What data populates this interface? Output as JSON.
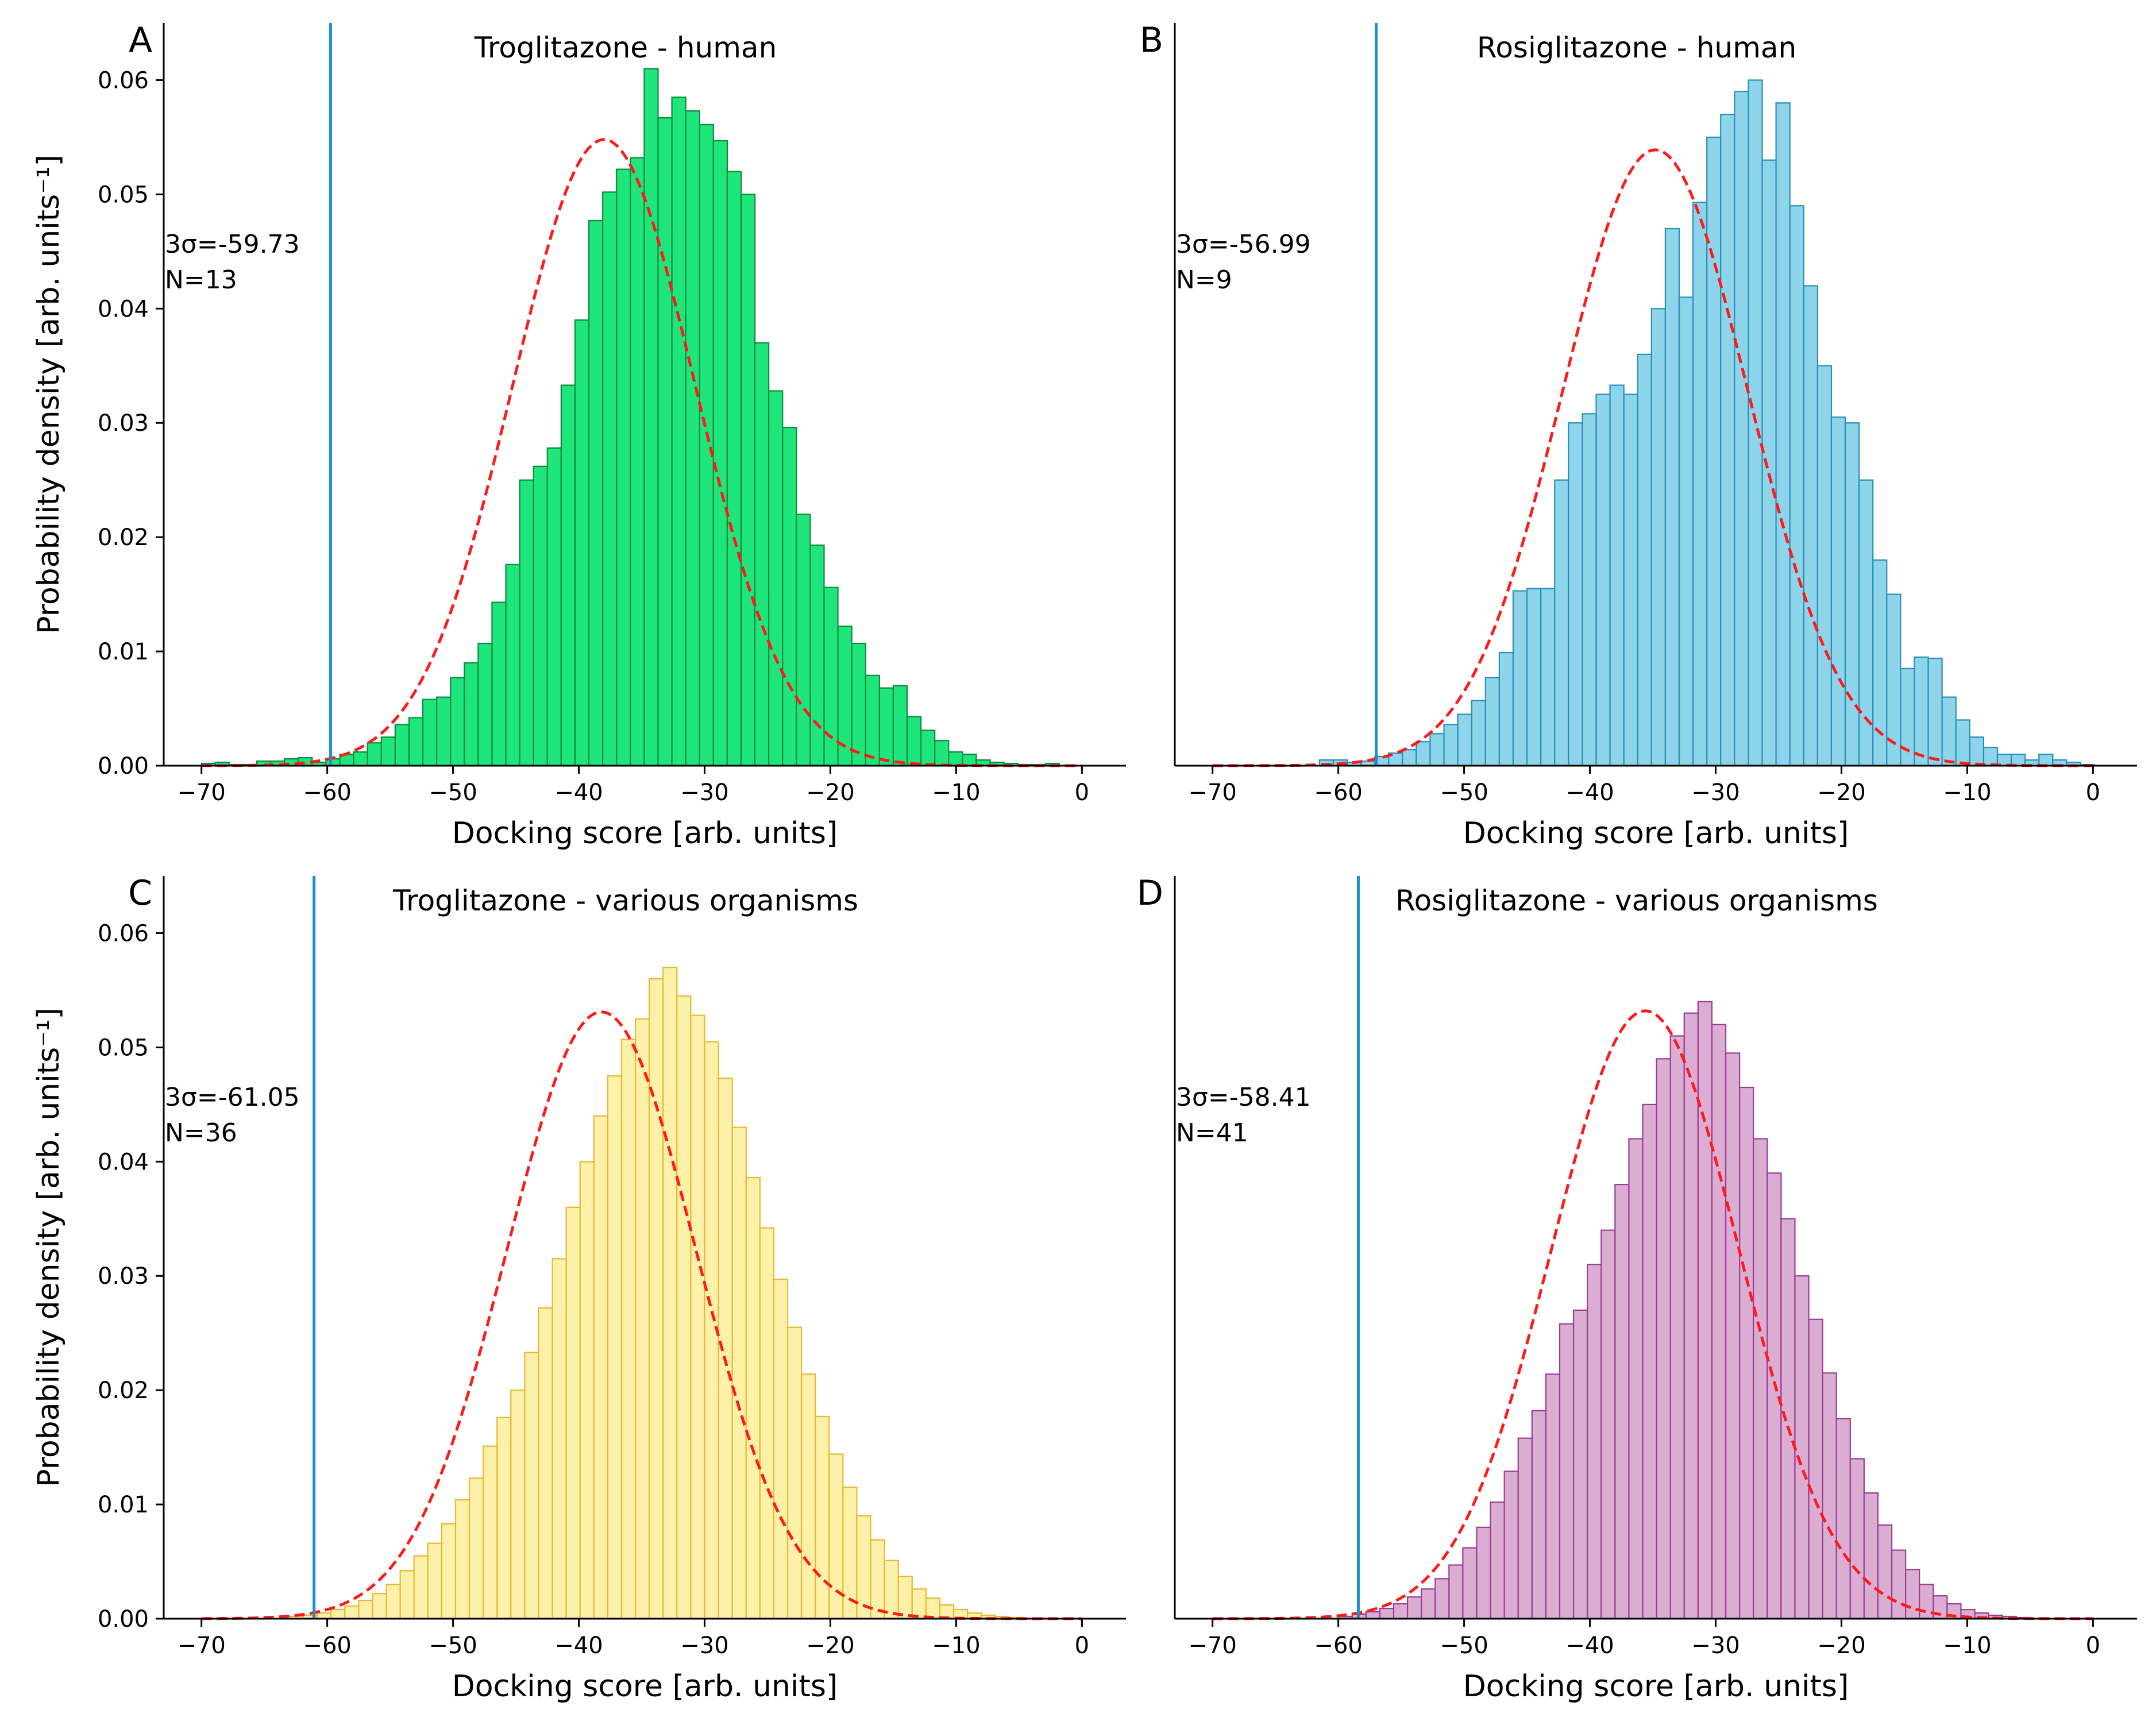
{
  "colors": {
    "cutoff_line": "#1f8fce",
    "fit_curve": "#ff1a1a"
  },
  "chart_data": [
    {
      "panel": "A",
      "type": "bar",
      "title": "Troglitazone - human",
      "xlabel": "Docking score [arb. units]",
      "ylabel": "Probability density [arb. units⁻¹]",
      "xlim": [
        -73,
        3.5
      ],
      "ylim": [
        0,
        0.065
      ],
      "xticks": [
        -70,
        -60,
        -50,
        -40,
        -30,
        -20,
        -10,
        0
      ],
      "yticks": [
        0.0,
        0.01,
        0.02,
        0.03,
        0.04,
        0.05,
        0.06
      ],
      "bin_start": -70,
      "bin_width": 1.1,
      "values": [
        0.0002,
        0.0003,
        0.0001,
        0.0001,
        0.0004,
        0.0004,
        0.0006,
        0.0007,
        0.0003,
        0.0006,
        0.001,
        0.0012,
        0.002,
        0.0025,
        0.0036,
        0.0042,
        0.0058,
        0.006,
        0.0077,
        0.009,
        0.0107,
        0.0143,
        0.0176,
        0.025,
        0.0262,
        0.0278,
        0.0333,
        0.039,
        0.0477,
        0.0502,
        0.0522,
        0.0532,
        0.061,
        0.0567,
        0.0585,
        0.0573,
        0.0561,
        0.0547,
        0.052,
        0.05,
        0.037,
        0.0328,
        0.0296,
        0.022,
        0.0193,
        0.0156,
        0.0122,
        0.0107,
        0.0079,
        0.0068,
        0.007,
        0.0043,
        0.0031,
        0.0022,
        0.0012,
        0.001,
        0.0005,
        0.0003,
        0.0002,
        0.0001,
        0.0001,
        0.0002
      ],
      "bar_fill": "#1ee67a",
      "bar_edge": "#0e8a3f",
      "fit": {
        "mean": -38.0,
        "sd": 7.27,
        "peak": 0.0548
      },
      "cutoff": -59.73,
      "annotation": [
        "3σ=-59.73",
        "N=13"
      ]
    },
    {
      "panel": "B",
      "type": "bar",
      "title": "Rosiglitazone - human",
      "xlabel": "Docking score [arb. units]",
      "ylabel": "",
      "xlim": [
        -73,
        3.5
      ],
      "ylim": [
        0,
        0.065
      ],
      "xticks": [
        -70,
        -60,
        -50,
        -40,
        -30,
        -20,
        -10,
        0
      ],
      "yticks": [],
      "bin_start": -61.5,
      "bin_width": 1.1,
      "values": [
        0.0005,
        0.0005,
        0.0003,
        0.0004,
        0.0008,
        0.0011,
        0.0014,
        0.0021,
        0.0028,
        0.0036,
        0.0045,
        0.0057,
        0.0077,
        0.0099,
        0.0153,
        0.0155,
        0.0155,
        0.025,
        0.03,
        0.0308,
        0.0325,
        0.0333,
        0.0325,
        0.036,
        0.04,
        0.047,
        0.041,
        0.0493,
        0.055,
        0.057,
        0.059,
        0.06,
        0.053,
        0.058,
        0.049,
        0.042,
        0.035,
        0.0305,
        0.03,
        0.025,
        0.018,
        0.015,
        0.0085,
        0.0095,
        0.0094,
        0.006,
        0.004,
        0.0025,
        0.0016,
        0.001,
        0.001,
        0.0005,
        0.001,
        0.0005,
        0.0003,
        0.0001
      ],
      "bar_fill": "#8ed4ea",
      "bar_edge": "#2a8fb8",
      "fit": {
        "mean": -34.8,
        "sd": 7.39,
        "peak": 0.0539
      },
      "cutoff": -56.99,
      "annotation": [
        "3σ=-56.99",
        "N=9"
      ]
    },
    {
      "panel": "C",
      "type": "bar",
      "title": "Troglitazone - various organisms",
      "xlabel": "Docking score [arb. units]",
      "ylabel": "Probability density [arb. units⁻¹]",
      "xlim": [
        -73,
        3.5
      ],
      "ylim": [
        0,
        0.065
      ],
      "xticks": [
        -70,
        -60,
        -50,
        -40,
        -30,
        -20,
        -10,
        0
      ],
      "yticks": [
        0.0,
        0.01,
        0.02,
        0.03,
        0.04,
        0.05,
        0.06
      ],
      "bin_start": -63,
      "bin_width": 1.1,
      "values": [
        0.0002,
        0.0003,
        0.0005,
        0.0008,
        0.0011,
        0.0016,
        0.0022,
        0.003,
        0.0042,
        0.0055,
        0.0066,
        0.0083,
        0.0104,
        0.0123,
        0.0151,
        0.0176,
        0.02,
        0.0233,
        0.0272,
        0.0315,
        0.036,
        0.04,
        0.044,
        0.0475,
        0.0507,
        0.0525,
        0.056,
        0.057,
        0.0545,
        0.0528,
        0.0505,
        0.0473,
        0.043,
        0.0386,
        0.0342,
        0.0297,
        0.0255,
        0.0214,
        0.0177,
        0.0144,
        0.0115,
        0.009,
        0.0069,
        0.0051,
        0.0037,
        0.0026,
        0.0018,
        0.0012,
        0.0008,
        0.0005,
        0.0003,
        0.0002,
        0.0001
      ],
      "bar_fill": "#fdf0a8",
      "bar_edge": "#e8b830",
      "fit": {
        "mean": -38.2,
        "sd": 7.53,
        "peak": 0.0531
      },
      "cutoff": -61.05,
      "annotation": [
        "3σ=-61.05",
        "N=36"
      ]
    },
    {
      "panel": "D",
      "type": "bar",
      "title": "Rosiglitazone - various organisms",
      "xlabel": "Docking score [arb. units]",
      "ylabel": "",
      "xlim": [
        -73,
        3.5
      ],
      "ylim": [
        0,
        0.065
      ],
      "xticks": [
        -70,
        -60,
        -50,
        -40,
        -30,
        -20,
        -10,
        0
      ],
      "yticks": [],
      "bin_start": -60,
      "bin_width": 1.1,
      "values": [
        0.0002,
        0.0004,
        0.0006,
        0.0009,
        0.0013,
        0.0019,
        0.0026,
        0.0035,
        0.0047,
        0.0062,
        0.008,
        0.0102,
        0.0129,
        0.0158,
        0.0182,
        0.0214,
        0.0258,
        0.027,
        0.031,
        0.034,
        0.038,
        0.042,
        0.045,
        0.049,
        0.051,
        0.053,
        0.054,
        0.052,
        0.0495,
        0.0465,
        0.042,
        0.039,
        0.035,
        0.03,
        0.0262,
        0.0215,
        0.0175,
        0.014,
        0.011,
        0.0082,
        0.006,
        0.0043,
        0.003,
        0.002,
        0.0013,
        0.0008,
        0.0005,
        0.0003,
        0.0002,
        0.0001
      ],
      "bar_fill": "#dcadd2",
      "bar_edge": "#9a3d94",
      "fit": {
        "mean": -35.6,
        "sd": 7.47,
        "peak": 0.0532
      },
      "cutoff": -58.41,
      "annotation": [
        "3σ=-58.41",
        "N=41"
      ]
    }
  ]
}
